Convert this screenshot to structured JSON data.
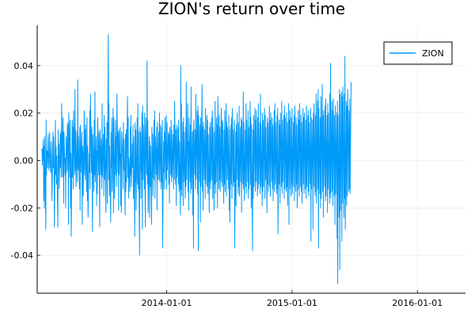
{
  "chart_data": {
    "type": "line",
    "title": "ZION's return over time",
    "xlabel": "",
    "ylabel": "",
    "x_start": "2013-01-02",
    "x_ticks": [
      "2014-01-01",
      "2015-01-01",
      "2016-01-01"
    ],
    "y_ticks": [
      "0.04",
      "0.02",
      "0.00",
      "-0.02",
      "-0.04"
    ],
    "ylim": [
      -0.056,
      0.057
    ],
    "xlim": [
      "2012-12-20",
      "2016-05-20"
    ],
    "grid": true,
    "legend_position": "top-right",
    "series": [
      {
        "name": "ZION",
        "color": "#009af9",
        "values": [
          0.004,
          0.005,
          -0.002,
          0.009,
          -0.017,
          0.006,
          -0.02,
          0.01,
          -0.029,
          0.017,
          -0.006,
          0.004,
          -0.003,
          0.011,
          -0.004,
          0.003,
          -0.003,
          0.012,
          -0.005,
          -0.002,
          0.008,
          -0.004,
          -0.017,
          0.012,
          -0.003,
          0.01,
          -0.001,
          -0.028,
          0.017,
          -0.006,
          0.006,
          -0.01,
          0.002,
          -0.028,
          0.013,
          -0.004,
          0.007,
          -0.012,
          0.011,
          -0.003,
          0.012,
          -0.007,
          0.024,
          -0.007,
          0.018,
          0.008,
          -0.018,
          0.012,
          -0.006,
          0.001,
          -0.02,
          0.01,
          -0.005,
          0.015,
          -0.004,
          0.016,
          -0.027,
          0.02,
          -0.007,
          0.017,
          -0.02,
          0.003,
          -0.032,
          0.017,
          -0.007,
          0.014,
          -0.012,
          0.021,
          -0.006,
          0.03,
          -0.004,
          0.013,
          -0.011,
          0.012,
          -0.009,
          0.034,
          -0.004,
          0.01,
          -0.012,
          0.014,
          -0.021,
          0.015,
          -0.005,
          0.012,
          -0.027,
          0.006,
          0.003,
          -0.015,
          0.021,
          -0.006,
          0.013,
          -0.008,
          0.015,
          -0.013,
          0.018,
          -0.017,
          0.006,
          -0.024,
          0.003,
          -0.005,
          0.021,
          -0.012,
          0.028,
          -0.005,
          0.014,
          -0.011,
          -0.03,
          0.011,
          -0.013,
          0.017,
          -0.006,
          0.029,
          -0.009,
          0.01,
          -0.019,
          0.004,
          -0.014,
          0.018,
          -0.006,
          0.012,
          -0.01,
          -0.028,
          0.013,
          -0.006,
          0.009,
          -0.012,
          0.024,
          -0.007,
          0.011,
          -0.015,
          0.019,
          -0.008,
          0.014,
          -0.022,
          0.009,
          -0.004,
          0.016,
          -0.018,
          0.053,
          -0.008,
          0.024,
          -0.015,
          0.006,
          -0.026,
          0.012,
          -0.003,
          0.018,
          -0.013,
          0.022,
          -0.022,
          0.018,
          0.006,
          -0.016,
          0.017,
          -0.006,
          0.01,
          -0.011,
          0.028,
          -0.005,
          0.012,
          -0.021,
          0.013,
          -0.006,
          0.014,
          -0.019,
          0.003,
          -0.022,
          0.012,
          0.001,
          -0.012,
          0.016,
          -0.004,
          0.009,
          -0.023,
          0.011,
          -0.013,
          0.013,
          -0.009,
          0.027,
          -0.007,
          0.018,
          -0.016,
          0.001,
          -0.013,
          0.014,
          -0.006,
          0.019,
          -0.011,
          0.007,
          -0.003,
          0.015,
          -0.016,
          0.01,
          -0.032,
          0.016,
          -0.009,
          0.013,
          -0.021,
          0.018,
          -0.01,
          0.024,
          -0.012,
          0.012,
          -0.04,
          0.014,
          -0.004,
          0.012,
          -0.016,
          0.02,
          -0.029,
          0.023,
          -0.008,
          0.015,
          -0.012,
          0.02,
          -0.013,
          -0.028,
          0.018,
          -0.006,
          0.042,
          -0.01,
          0.017,
          -0.022,
          0.01,
          -0.024,
          0.008,
          -0.011,
          0.006,
          -0.027,
          0.014,
          -0.007,
          0.011,
          -0.015,
          0.017,
          -0.008,
          0.021,
          -0.016,
          0.01,
          -0.006,
          0.014,
          -0.021,
          0.016,
          -0.008,
          0.012,
          -0.008,
          0.02,
          -0.009,
          0.015,
          -0.012,
          0.014,
          -0.009,
          0.017,
          -0.037,
          0.008,
          -0.005,
          0.012,
          -0.012,
          0.018,
          -0.008,
          0.019,
          -0.012,
          0.016,
          -0.004,
          0.012,
          -0.01,
          0.011,
          -0.018,
          0.014,
          -0.006,
          0.017,
          -0.009,
          0.013,
          -0.007,
          0.011,
          -0.012,
          0.015,
          -0.008,
          0.025,
          -0.01,
          0.013,
          -0.019,
          0.015,
          -0.007,
          0.014,
          -0.01,
          0.017,
          -0.013,
          0.008,
          -0.023,
          0.04,
          -0.012,
          0.024,
          -0.015,
          0.016,
          -0.019,
          0.018,
          -0.009,
          0.012,
          -0.016,
          0.014,
          -0.011,
          0.033,
          -0.008,
          0.024,
          -0.013,
          0.008,
          -0.021,
          0.018,
          -0.009,
          0.015,
          -0.014,
          0.031,
          -0.012,
          0.012,
          -0.023,
          0.013,
          -0.037,
          0.017,
          -0.006,
          0.013,
          -0.012,
          0.028,
          -0.008,
          0.021,
          -0.014,
          0.023,
          -0.038,
          0.019,
          -0.009,
          0.015,
          -0.026,
          0.018,
          -0.011,
          0.032,
          -0.013,
          0.014,
          -0.021,
          0.016,
          -0.008,
          0.013,
          -0.016,
          0.022,
          -0.01,
          0.019,
          -0.011,
          0.017,
          -0.014,
          0.011,
          -0.022,
          0.014,
          -0.009,
          0.016,
          -0.012,
          0.018,
          -0.008,
          0.021,
          -0.016,
          0.014,
          -0.021,
          0.012,
          -0.01,
          0.025,
          -0.014,
          0.018,
          -0.009,
          0.015,
          -0.02,
          0.027,
          -0.012,
          0.019,
          -0.008,
          0.014,
          -0.013,
          0.022,
          -0.009,
          0.017,
          -0.011,
          0.016,
          -0.018,
          0.013,
          -0.01,
          0.021,
          -0.013,
          0.024,
          -0.015,
          0.016,
          -0.008,
          0.014,
          -0.012,
          0.019,
          -0.021,
          0.013,
          -0.026,
          0.015,
          -0.01,
          0.018,
          -0.016,
          0.022,
          -0.011,
          0.013,
          -0.009,
          0.017,
          -0.037,
          0.012,
          -0.019,
          0.015,
          -0.008,
          0.02,
          -0.014,
          0.016,
          -0.011,
          0.023,
          -0.015,
          0.014,
          -0.009,
          0.018,
          -0.022,
          0.017,
          -0.01,
          0.029,
          -0.012,
          0.016,
          -0.017,
          0.013,
          -0.011,
          0.024,
          -0.014,
          0.017,
          -0.009,
          0.021,
          -0.016,
          0.014,
          -0.012,
          0.025,
          -0.01,
          0.018,
          -0.02,
          0.015,
          -0.038,
          0.013,
          -0.016,
          0.019,
          -0.011,
          0.022,
          -0.013,
          0.017,
          -0.009,
          0.021,
          -0.015,
          0.018,
          -0.012,
          0.024,
          -0.01,
          0.016,
          -0.014,
          0.028,
          -0.011,
          0.015,
          -0.019,
          0.02,
          -0.013,
          0.017,
          -0.011,
          0.022,
          -0.016,
          0.019,
          -0.008,
          0.014,
          -0.022,
          0.018,
          -0.01,
          0.016,
          -0.013,
          0.023,
          -0.011,
          0.017,
          -0.015,
          0.02,
          -0.009,
          0.018,
          -0.012,
          0.015,
          -0.017,
          0.021,
          -0.013,
          0.024,
          -0.01,
          0.016,
          -0.014,
          0.019,
          -0.012,
          0.022,
          -0.031,
          0.017,
          -0.01,
          0.015,
          -0.018,
          0.02,
          -0.011,
          0.025,
          -0.014,
          0.017,
          -0.009,
          0.019,
          -0.016,
          0.023,
          -0.012,
          0.018,
          -0.013,
          0.02,
          -0.011,
          0.016,
          -0.019,
          0.024,
          -0.027,
          0.017,
          -0.012,
          0.021,
          -0.015,
          0.018,
          -0.01,
          0.022,
          -0.014,
          0.016,
          -0.011,
          0.019,
          -0.017,
          0.023,
          -0.013,
          0.018,
          -0.01,
          0.015,
          -0.02,
          0.021,
          -0.012,
          0.017,
          -0.015,
          0.024,
          -0.011,
          0.019,
          -0.013,
          0.016,
          -0.018,
          0.022,
          -0.01,
          0.018,
          -0.014,
          0.02,
          -0.012,
          0.017,
          -0.016,
          0.023,
          -0.011,
          0.019,
          -0.013,
          0.021,
          -0.015,
          0.016,
          -0.01,
          0.022,
          -0.034,
          0.018,
          -0.012,
          0.017,
          -0.029,
          0.02,
          -0.011,
          0.024,
          -0.015,
          0.019,
          -0.013,
          0.028,
          -0.018,
          0.025,
          -0.012,
          0.03,
          -0.037,
          0.022,
          -0.014,
          0.018,
          -0.02,
          0.027,
          -0.016,
          0.032,
          -0.013,
          0.019,
          -0.024,
          0.021,
          -0.011,
          0.023,
          -0.017,
          0.026,
          -0.015,
          0.019,
          -0.022,
          0.024,
          -0.012,
          0.02,
          -0.018,
          0.028,
          -0.014,
          0.041,
          -0.016,
          0.025,
          -0.013,
          0.021,
          -0.019,
          0.026,
          -0.015,
          0.019,
          -0.027,
          0.023,
          -0.014,
          0.02,
          -0.033,
          0.025,
          -0.052,
          0.019,
          -0.024,
          0.03,
          -0.046,
          0.028,
          -0.021,
          0.029,
          -0.034,
          0.027,
          -0.018,
          0.031,
          -0.024,
          0.028,
          -0.016,
          0.044,
          -0.029,
          0.025,
          -0.019,
          0.023,
          -0.015,
          0.03,
          -0.013,
          0.021,
          -0.012,
          0.026,
          -0.014,
          0.033
        ]
      }
    ]
  }
}
